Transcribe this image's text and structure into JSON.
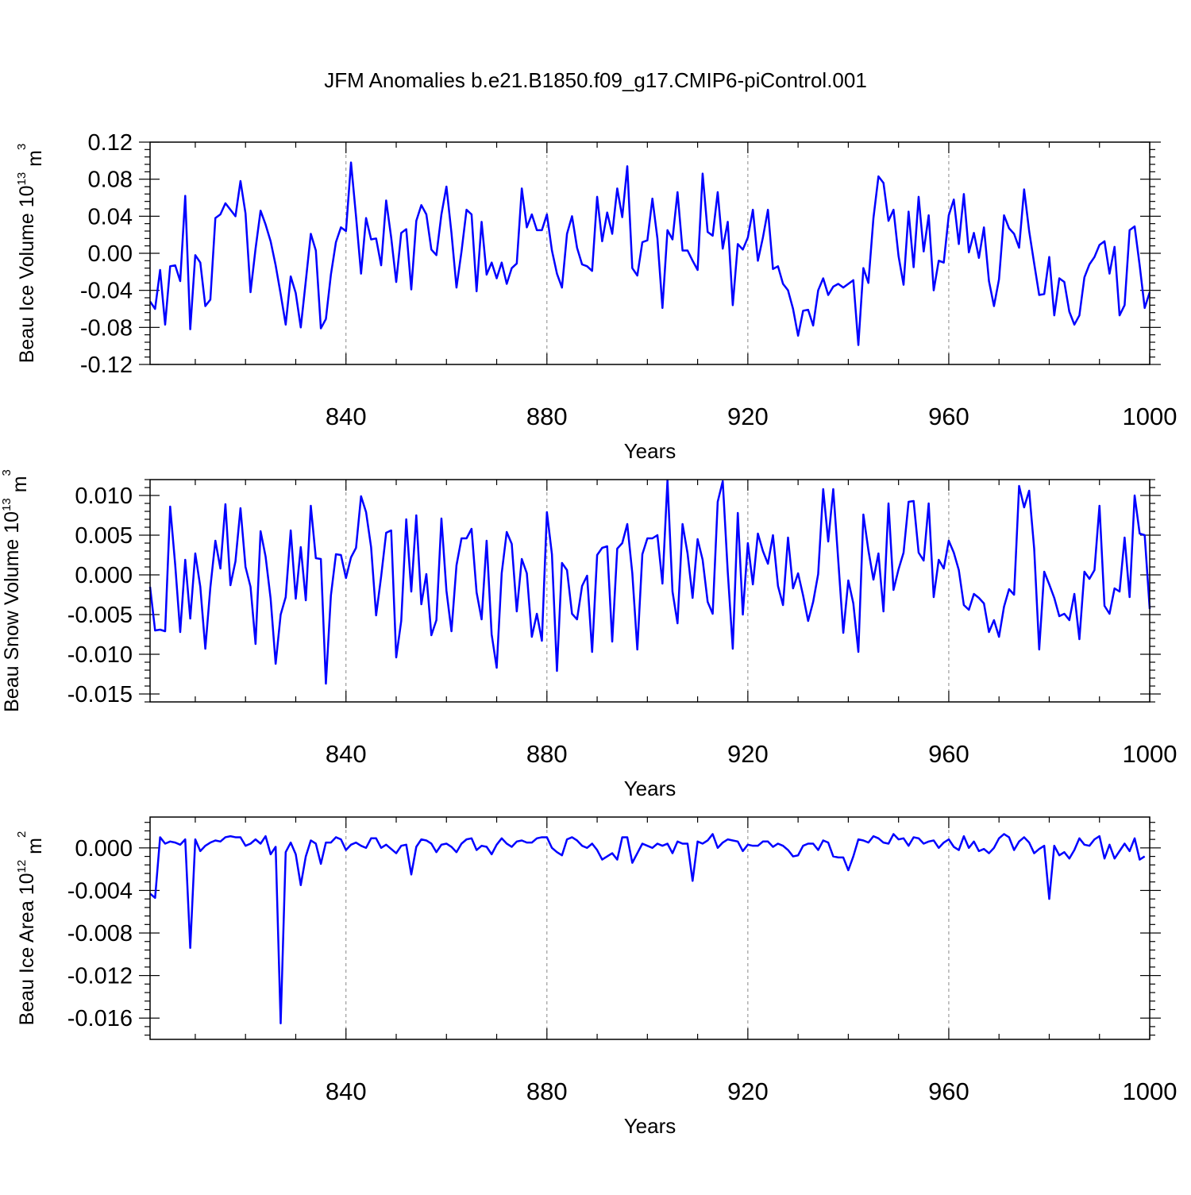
{
  "chart_data": [
    {
      "type": "line",
      "title": "JFM Anomalies b.e21.B1850.f09_g17.CMIP6-piControl.001",
      "xlabel": "Years",
      "ylabel_main": "Beau Ice Volume 10",
      "ylabel_exp": "13",
      "ylabel_unit": " m",
      "ylabel_unit_exp": "3",
      "xlim": [
        801,
        1000
      ],
      "ylim": [
        -0.12,
        0.12
      ],
      "xticks": [
        "840",
        "880",
        "920",
        "960",
        "1000"
      ],
      "xtick_values": [
        840,
        880,
        920,
        960,
        1000
      ],
      "yticks": [
        "-0.12",
        "-0.08",
        "-0.04",
        "0.00",
        "0.04",
        "0.08",
        "0.12"
      ],
      "ytick_values": [
        -0.12,
        -0.08,
        -0.04,
        0.0,
        0.04,
        0.08,
        0.12
      ],
      "grid": "vertical dashed at labeled x ticks",
      "series": [
        {
          "name": "Beau Ice Volume",
          "color": "#0000ff",
          "x_start": 801,
          "values": [
            -0.052,
            -0.06,
            -0.018,
            -0.077,
            -0.014,
            -0.013,
            -0.03,
            0.062,
            -0.082,
            -0.002,
            -0.01,
            -0.057,
            -0.05,
            0.038,
            0.042,
            0.054,
            0.047,
            0.04,
            0.078,
            0.043,
            -0.042,
            0.005,
            0.046,
            0.031,
            0.013,
            -0.013,
            -0.044,
            -0.077,
            -0.025,
            -0.043,
            -0.08,
            -0.03,
            0.021,
            0.003,
            -0.081,
            -0.071,
            -0.023,
            0.012,
            0.028,
            0.024,
            0.098,
            0.04,
            -0.022,
            0.038,
            0.015,
            0.016,
            -0.013,
            0.057,
            0.017,
            -0.031,
            0.022,
            0.026,
            -0.039,
            0.035,
            0.052,
            0.042,
            0.004,
            -0.002,
            0.042,
            0.072,
            0.022,
            -0.037,
            0.002,
            0.047,
            0.042,
            -0.041,
            0.034,
            -0.023,
            -0.01,
            -0.027,
            -0.01,
            -0.033,
            -0.016,
            -0.011,
            0.07,
            0.028,
            0.042,
            0.025,
            0.025,
            0.042,
            0.003,
            -0.022,
            -0.037,
            0.021,
            0.04,
            0.006,
            -0.012,
            -0.014,
            -0.019,
            0.061,
            0.013,
            0.044,
            0.021,
            0.07,
            0.039,
            0.094,
            -0.016,
            -0.024,
            0.012,
            0.014,
            0.059,
            0.016,
            -0.059,
            0.025,
            0.015,
            0.066,
            0.003,
            0.003,
            -0.008,
            -0.018,
            0.086,
            0.023,
            0.019,
            0.066,
            0.005,
            0.034,
            -0.056,
            0.01,
            0.004,
            0.017,
            0.047,
            -0.008,
            0.017,
            0.047,
            -0.017,
            -0.014,
            -0.033,
            -0.04,
            -0.06,
            -0.089,
            -0.062,
            -0.061,
            -0.078,
            -0.04,
            -0.027,
            -0.045,
            -0.036,
            -0.033,
            -0.037,
            -0.033,
            -0.029,
            -0.099,
            -0.016,
            -0.032,
            0.038,
            0.083,
            0.076,
            0.035,
            0.047,
            -0.003,
            -0.034,
            0.045,
            -0.015,
            0.061,
            0.002,
            0.041,
            -0.04,
            -0.008,
            -0.01,
            0.041,
            0.058,
            0.01,
            0.064,
            0.001,
            0.022,
            -0.005,
            0.028,
            -0.03,
            -0.057,
            -0.028,
            0.041,
            0.027,
            0.021,
            0.006,
            0.069,
            0.024,
            -0.011,
            -0.045,
            -0.044,
            -0.004,
            -0.067,
            -0.027,
            -0.031,
            -0.063,
            -0.077,
            -0.067,
            -0.026,
            -0.012,
            -0.004,
            0.009,
            0.013,
            -0.022,
            0.007,
            -0.067,
            -0.056,
            0.025,
            0.029,
            -0.013,
            -0.059,
            -0.042
          ]
        }
      ]
    },
    {
      "type": "line",
      "xlabel": "Years",
      "ylabel_main": "Beau Snow Volume 10",
      "ylabel_exp": "13",
      "ylabel_unit": " m",
      "ylabel_unit_exp": "3",
      "xlim": [
        801,
        1000
      ],
      "ylim": [
        -0.016,
        0.012
      ],
      "xticks": [
        "840",
        "880",
        "920",
        "960",
        "1000"
      ],
      "xtick_values": [
        840,
        880,
        920,
        960,
        1000
      ],
      "yticks": [
        "-0.015",
        "-0.010",
        "-0.005",
        "0.000",
        "0.005",
        "0.010"
      ],
      "ytick_values": [
        -0.015,
        -0.01,
        -0.005,
        0.0,
        0.005,
        0.01
      ],
      "grid": "vertical dashed at labeled x ticks",
      "series": [
        {
          "name": "Beau Snow Volume",
          "color": "#0000ff",
          "x_start": 801,
          "values": [
            -0.0015,
            -0.007,
            -0.0069,
            -0.0071,
            0.0086,
            0.0013,
            -0.0072,
            0.0019,
            -0.0055,
            0.0027,
            -0.0015,
            -0.0093,
            -0.0016,
            0.0043,
            0.0008,
            0.0089,
            -0.0013,
            0.0017,
            0.0084,
            0.001,
            -0.0015,
            -0.0087,
            0.0055,
            0.0023,
            -0.003,
            -0.0112,
            -0.005,
            -0.0028,
            0.0056,
            -0.003,
            0.0035,
            -0.0032,
            0.0087,
            0.0021,
            0.002,
            -0.0137,
            -0.0026,
            0.0026,
            0.0025,
            -0.0004,
            0.0022,
            0.0034,
            0.0099,
            0.0079,
            0.0035,
            -0.0051,
            -0.0002,
            0.0053,
            0.0056,
            -0.0104,
            -0.0058,
            0.007,
            -0.0021,
            0.0075,
            -0.0037,
            0.0001,
            -0.0076,
            -0.0057,
            0.0071,
            -0.002,
            -0.0071,
            0.0012,
            0.0046,
            0.0046,
            0.0058,
            -0.0022,
            -0.0056,
            0.0043,
            -0.0075,
            -0.0117,
            0.0002,
            0.0054,
            0.0039,
            -0.0046,
            0.002,
            0.0002,
            -0.0078,
            -0.0049,
            -0.0083,
            0.0079,
            0.0026,
            -0.0121,
            0.0015,
            0.0006,
            -0.0049,
            -0.0056,
            -0.0014,
            -0.0001,
            -0.0097,
            0.0025,
            0.0034,
            0.0036,
            -0.0084,
            0.0033,
            0.004,
            0.0064,
            0.0002,
            -0.0094,
            0.0026,
            0.0046,
            0.0046,
            0.005,
            -0.0011,
            0.0119,
            -0.0021,
            -0.0061,
            0.0064,
            0.0027,
            -0.0029,
            0.0045,
            0.0019,
            -0.0034,
            -0.0049,
            0.0092,
            0.0118,
            0.0004,
            -0.0093,
            0.0078,
            -0.005,
            0.004,
            -0.0012,
            0.0052,
            0.003,
            0.0014,
            0.005,
            -0.0014,
            -0.0038,
            0.0047,
            -0.0017,
            0.0002,
            -0.0026,
            -0.0058,
            -0.0034,
            0.0001,
            0.0108,
            0.0042,
            0.0108,
            0.0018,
            -0.0073,
            -0.0007,
            -0.0036,
            -0.0097,
            0.0076,
            0.0031,
            -0.0006,
            0.0027,
            -0.0046,
            0.009,
            -0.0019,
            0.0007,
            0.0028,
            0.0092,
            0.0093,
            0.0028,
            0.0018,
            0.009,
            -0.0028,
            0.0019,
            0.0008,
            0.0043,
            0.0028,
            0.0006,
            -0.0038,
            -0.0044,
            -0.0024,
            -0.0029,
            -0.0036,
            -0.0072,
            -0.0057,
            -0.0078,
            -0.004,
            -0.0018,
            -0.0025,
            0.0112,
            0.0085,
            0.0106,
            0.0033,
            -0.0094,
            0.0004,
            -0.0012,
            -0.0029,
            -0.0052,
            -0.0049,
            -0.0057,
            -0.0024,
            -0.0081,
            0.0004,
            -0.0005,
            0.0006,
            0.0087,
            -0.0039,
            -0.0049,
            -0.0017,
            -0.0021,
            0.0047,
            -0.0028,
            0.01,
            0.0052,
            0.005,
            -0.0043
          ]
        }
      ]
    },
    {
      "type": "line",
      "xlabel": "Years",
      "ylabel_main": "Beau Ice Area 10",
      "ylabel_exp": "12",
      "ylabel_unit": " m",
      "ylabel_unit_exp": "2",
      "xlim": [
        801,
        1000
      ],
      "ylim": [
        -0.018,
        0.0029
      ],
      "xticks": [
        "840",
        "880",
        "920",
        "960",
        "1000"
      ],
      "xtick_values": [
        840,
        880,
        920,
        960,
        1000
      ],
      "yticks": [
        "-0.016",
        "-0.012",
        "-0.008",
        "-0.004",
        "0.000"
      ],
      "ytick_values": [
        -0.016,
        -0.012,
        -0.008,
        -0.004,
        0.0
      ],
      "grid": "vertical dashed at labeled x ticks",
      "series": [
        {
          "name": "Beau Ice Area",
          "color": "#0000ff",
          "x_start": 801,
          "values": [
            -0.0043,
            -0.0047,
            0.001,
            0.0004,
            0.0006,
            0.0005,
            0.0003,
            0.0008,
            -0.0094,
            0.0008,
            -0.0003,
            0.0002,
            0.0005,
            0.0007,
            0.0006,
            0.001,
            0.0011,
            0.001,
            0.001,
            0.0002,
            0.0004,
            0.0008,
            0.0004,
            0.0011,
            -0.0006,
            0.0001,
            -0.0165,
            -0.0004,
            0.0005,
            -0.0006,
            -0.0035,
            -0.0008,
            0.0007,
            0.0004,
            -0.0015,
            0.0005,
            0.0005,
            0.001,
            0.0008,
            -0.0002,
            0.0003,
            0.0005,
            0.0002,
            0.0,
            0.0009,
            0.0009,
            0.0,
            0.0003,
            -0.0001,
            -0.0005,
            0.0002,
            0.0003,
            -0.0025,
            0.0001,
            0.0008,
            0.0007,
            0.0004,
            -0.0004,
            0.0003,
            0.0004,
            0.0001,
            -0.0004,
            0.0004,
            0.0008,
            0.0009,
            -0.0002,
            0.0002,
            0.0001,
            -0.0006,
            0.0003,
            0.0009,
            0.0004,
            0.0001,
            0.0006,
            0.0007,
            0.0005,
            0.0005,
            0.0009,
            0.001,
            0.001,
            0.0,
            -0.0004,
            -0.0007,
            0.0008,
            0.001,
            0.0007,
            0.0002,
            0.0,
            0.0004,
            -0.0002,
            -0.0011,
            -0.0008,
            -0.0005,
            -0.0011,
            0.001,
            0.001,
            -0.0014,
            -0.0005,
            0.0004,
            0.0002,
            0.0,
            0.0004,
            0.0002,
            0.0004,
            -0.0005,
            0.0006,
            0.0004,
            0.0004,
            -0.0031,
            0.0006,
            0.0004,
            0.0007,
            0.0013,
            0.0,
            0.0005,
            0.0008,
            0.0007,
            0.0006,
            -0.0003,
            0.0003,
            0.0002,
            0.0002,
            0.0006,
            0.0006,
            0.0001,
            0.0004,
            0.0002,
            -0.0002,
            -0.0008,
            -0.0007,
            0.0002,
            0.0004,
            0.0004,
            -0.0002,
            0.0007,
            0.0005,
            -0.0008,
            -0.0009,
            -0.0009,
            -0.0021,
            -0.0008,
            0.0008,
            0.0007,
            0.0005,
            0.0011,
            0.0009,
            0.0005,
            0.0004,
            0.0013,
            0.0008,
            0.0009,
            0.0002,
            0.001,
            0.0009,
            0.0004,
            0.0006,
            0.0007,
            0.0,
            0.0005,
            0.0008,
            0.0001,
            -0.0002,
            0.0011,
            0.0,
            0.0006,
            -0.0003,
            -0.0001,
            -0.0005,
            0.0,
            0.0009,
            0.0013,
            0.001,
            -0.0002,
            0.0006,
            0.001,
            0.0005,
            -0.0005,
            -0.0001,
            0.0002,
            -0.0048,
            0.0002,
            -0.0007,
            -0.0004,
            -0.001,
            -0.0002,
            0.0009,
            0.0003,
            0.0002,
            0.0008,
            0.0011,
            -0.001,
            0.0003,
            -0.001,
            -0.0003,
            0.0004,
            -0.0003,
            0.0009,
            -0.0011,
            -0.0008
          ]
        }
      ]
    }
  ]
}
